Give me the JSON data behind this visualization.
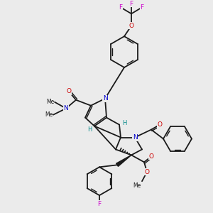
{
  "bg_color": "#ebebeb",
  "bond_color": "#1a1a1a",
  "N_color": "#0000cc",
  "O_color": "#cc0000",
  "F_color": "#cc00cc",
  "H_color": "#008888",
  "figsize": [
    3.0,
    3.0
  ],
  "dpi": 100,
  "xlim": [
    0,
    300
  ],
  "ylim": [
    0,
    300
  ]
}
